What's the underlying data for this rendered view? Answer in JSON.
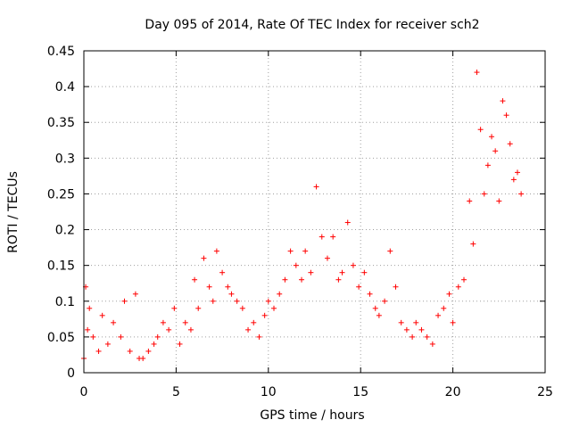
{
  "chart_data": {
    "type": "scatter",
    "title": "Day 095 of 2014, Rate Of TEC Index for receiver sch2",
    "xlabel": "GPS time / hours",
    "ylabel": "ROTI / TECUs",
    "xlim": [
      0,
      25
    ],
    "ylim": [
      0,
      0.45
    ],
    "x_ticks": [
      "0",
      "5",
      "10",
      "15",
      "20",
      "25"
    ],
    "y_ticks": [
      "0",
      "0.05",
      "0.1",
      "0.15",
      "0.2",
      "0.25",
      "0.3",
      "0.35",
      "0.4",
      "0.45"
    ],
    "grid": true,
    "marker": "+",
    "color": "#ff0000",
    "x": [
      0.0,
      0.1,
      0.2,
      0.3,
      0.5,
      0.8,
      1.0,
      1.3,
      1.6,
      2.0,
      2.2,
      2.5,
      2.8,
      3.0,
      3.2,
      3.5,
      3.8,
      4.0,
      4.3,
      4.6,
      4.9,
      5.2,
      5.5,
      5.8,
      6.0,
      6.2,
      6.5,
      6.8,
      7.0,
      7.2,
      7.5,
      7.8,
      8.0,
      8.3,
      8.6,
      8.9,
      9.2,
      9.5,
      9.8,
      10.0,
      10.3,
      10.6,
      10.9,
      11.2,
      11.5,
      11.8,
      12.0,
      12.3,
      12.6,
      12.9,
      13.2,
      13.5,
      13.8,
      14.0,
      14.3,
      14.6,
      14.9,
      15.2,
      15.5,
      15.8,
      16.0,
      16.3,
      16.6,
      16.9,
      17.2,
      17.5,
      17.8,
      18.0,
      18.3,
      18.6,
      18.9,
      19.2,
      19.5,
      19.8,
      20.0,
      20.3,
      20.6,
      20.9,
      21.1,
      21.3,
      21.5,
      21.7,
      21.9,
      22.1,
      22.3,
      22.5,
      22.7,
      22.9,
      23.1,
      23.3,
      23.5,
      23.7
    ],
    "y": [
      0.02,
      0.12,
      0.06,
      0.09,
      0.05,
      0.03,
      0.08,
      0.04,
      0.07,
      0.05,
      0.1,
      0.03,
      0.11,
      0.02,
      0.02,
      0.03,
      0.04,
      0.05,
      0.07,
      0.06,
      0.09,
      0.04,
      0.07,
      0.06,
      0.13,
      0.09,
      0.16,
      0.12,
      0.1,
      0.17,
      0.14,
      0.12,
      0.11,
      0.1,
      0.09,
      0.06,
      0.07,
      0.05,
      0.08,
      0.1,
      0.09,
      0.11,
      0.13,
      0.17,
      0.15,
      0.13,
      0.17,
      0.14,
      0.26,
      0.19,
      0.16,
      0.19,
      0.13,
      0.14,
      0.21,
      0.15,
      0.12,
      0.14,
      0.11,
      0.09,
      0.08,
      0.1,
      0.17,
      0.12,
      0.07,
      0.06,
      0.05,
      0.07,
      0.06,
      0.05,
      0.04,
      0.08,
      0.09,
      0.11,
      0.07,
      0.12,
      0.13,
      0.24,
      0.18,
      0.42,
      0.34,
      0.25,
      0.29,
      0.33,
      0.31,
      0.24,
      0.38,
      0.36,
      0.32,
      0.27,
      0.28,
      0.25
    ]
  }
}
